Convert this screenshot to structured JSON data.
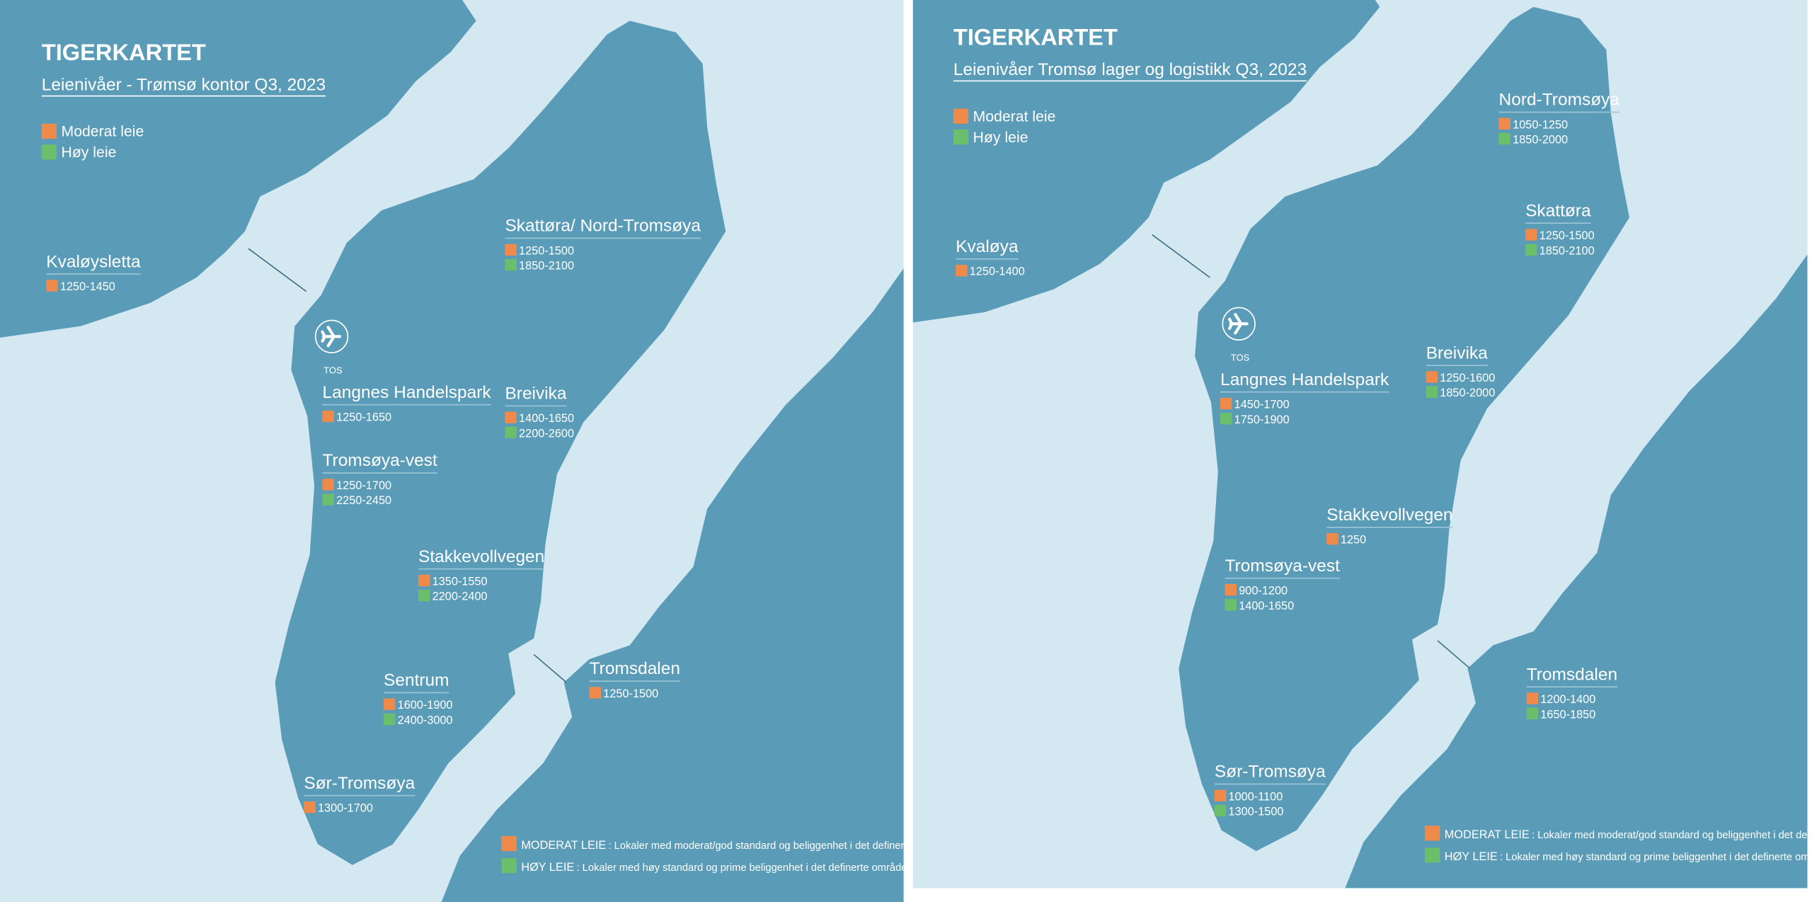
{
  "maps": [
    {
      "title": "TIGERKARTET",
      "subtitle": "Leienivåer - Trømsø kontor Q3, 2023",
      "legend": [
        "Moderat leie",
        "Høy leie"
      ],
      "airport": "TOS",
      "locations": [
        {
          "name": "Kvaløysletta",
          "moderate": "1250-1450"
        },
        {
          "name": "Skattøra/ Nord-Tromsøya",
          "moderate": "1250-1500",
          "high": "1850-2100"
        },
        {
          "name": "Langnes Handelspark",
          "moderate": "1250-1650"
        },
        {
          "name": "Breivika",
          "moderate": "1400-1650",
          "high": "2200-2600"
        },
        {
          "name": "Tromsøya-vest",
          "moderate": "1250-1700",
          "high": "2250-2450"
        },
        {
          "name": "Stakkevollvegen",
          "moderate": "1350-1550",
          "high": "2200-2400"
        },
        {
          "name": "Sentrum",
          "moderate": "1600-1900",
          "high": "2400-3000"
        },
        {
          "name": "Tromsdalen",
          "moderate": "1250-1500"
        },
        {
          "name": "Sør-Tromsøya",
          "moderate": "1300-1700"
        }
      ],
      "notes": [
        {
          "term": "MODERAT LEIE",
          "text": ": Lokaler med moderat/god standard og beliggenhet i det definerte området."
        },
        {
          "term": "HØY LEIE",
          "text": ": Lokaler med høy standard og prime beliggenhet i det definerte området."
        }
      ]
    },
    {
      "title": "TIGERKARTET",
      "subtitle": "Leienivåer Tromsø lager og logistikk Q3, 2023",
      "legend": [
        "Moderat leie",
        "Høy leie"
      ],
      "airport": "TOS",
      "locations": [
        {
          "name": "Nord-Tromsøya",
          "moderate": "1050-1250",
          "high": "1850-2000"
        },
        {
          "name": "Skattøra",
          "moderate": "1250-1500",
          "high": "1850-2100"
        },
        {
          "name": "Kvaløya",
          "moderate": "1250-1400"
        },
        {
          "name": "Breivika",
          "moderate": "1250-1600",
          "high": "1850-2000"
        },
        {
          "name": "Langnes Handelspark",
          "moderate": "1450-1700",
          "high": "1750-1900"
        },
        {
          "name": "Stakkevollvegen",
          "moderate": "1250"
        },
        {
          "name": "Tromsøya-vest",
          "moderate": "900-1200",
          "high": "1400-1650"
        },
        {
          "name": "Tromsdalen",
          "moderate": "1200-1400",
          "high": "1650-1850"
        },
        {
          "name": "Sør-Tromsøya",
          "moderate": "1000-1100",
          "high": "1300-1500"
        }
      ],
      "notes": [
        {
          "term": "MODERAT LEIE",
          "text": ": Lokaler med moderat/god standard og beliggenhet i det definerte området."
        },
        {
          "term": "HØY LEIE",
          "text": ": Lokaler med høy standard og prime beliggenhet i det definerte området."
        }
      ]
    }
  ]
}
